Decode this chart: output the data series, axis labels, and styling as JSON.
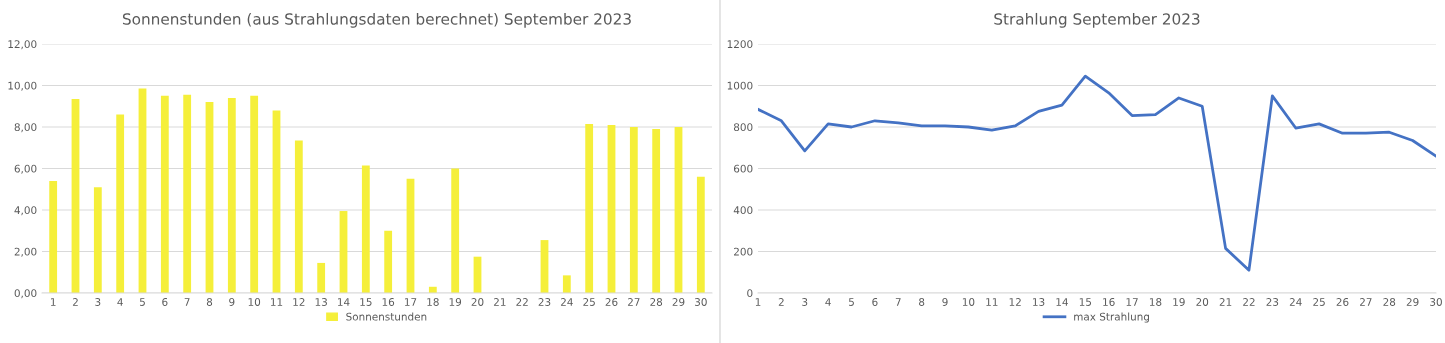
{
  "chart_data": [
    {
      "type": "bar",
      "title": "Sonnenstunden (aus Strahlungsdaten berechnet) September 2023",
      "categories": [
        "1",
        "2",
        "3",
        "4",
        "5",
        "6",
        "7",
        "8",
        "9",
        "10",
        "11",
        "12",
        "13",
        "14",
        "15",
        "16",
        "17",
        "18",
        "19",
        "20",
        "21",
        "22",
        "23",
        "24",
        "25",
        "26",
        "27",
        "28",
        "29",
        "30"
      ],
      "series": [
        {
          "name": "Sonnenstunden",
          "color": "#f5ef3a",
          "values": [
            5.4,
            9.35,
            5.1,
            8.6,
            9.85,
            9.5,
            9.55,
            9.2,
            9.4,
            9.5,
            8.8,
            7.35,
            1.45,
            3.95,
            6.15,
            3.0,
            5.5,
            0.3,
            6.0,
            1.75,
            0,
            0,
            2.55,
            0.85,
            8.15,
            8.1,
            8.0,
            7.9,
            8.0,
            5.6
          ]
        }
      ],
      "ylim": [
        0,
        12
      ],
      "yticks": [
        {
          "value": 0,
          "label": "0,00"
        },
        {
          "value": 2,
          "label": "2,00"
        },
        {
          "value": 4,
          "label": "4,00"
        },
        {
          "value": 6,
          "label": "6,00"
        },
        {
          "value": 8,
          "label": "8,00"
        },
        {
          "value": 10,
          "label": "10,00"
        },
        {
          "value": 12,
          "label": "12,00"
        }
      ],
      "grid": "y",
      "legend": "bottom"
    },
    {
      "type": "line",
      "title": "Strahlung September 2023",
      "categories": [
        "1",
        "2",
        "3",
        "4",
        "5",
        "6",
        "7",
        "8",
        "9",
        "10",
        "11",
        "12",
        "13",
        "14",
        "15",
        "16",
        "17",
        "18",
        "19",
        "20",
        "21",
        "22",
        "23",
        "24",
        "25",
        "26",
        "27",
        "28",
        "29",
        "30"
      ],
      "series": [
        {
          "name": "max Strahlung",
          "color": "#4472c4",
          "values": [
            885,
            830,
            685,
            815,
            800,
            830,
            820,
            805,
            805,
            800,
            785,
            805,
            875,
            905,
            1045,
            965,
            855,
            860,
            940,
            900,
            215,
            110,
            950,
            795,
            815,
            770,
            770,
            775,
            735,
            660
          ]
        }
      ],
      "ylim": [
        0,
        1200
      ],
      "yticks": [
        0,
        200,
        400,
        600,
        800,
        1000,
        1200
      ],
      "grid": "y",
      "legend": "bottom",
      "marker": "none",
      "line_style": "solid"
    }
  ]
}
